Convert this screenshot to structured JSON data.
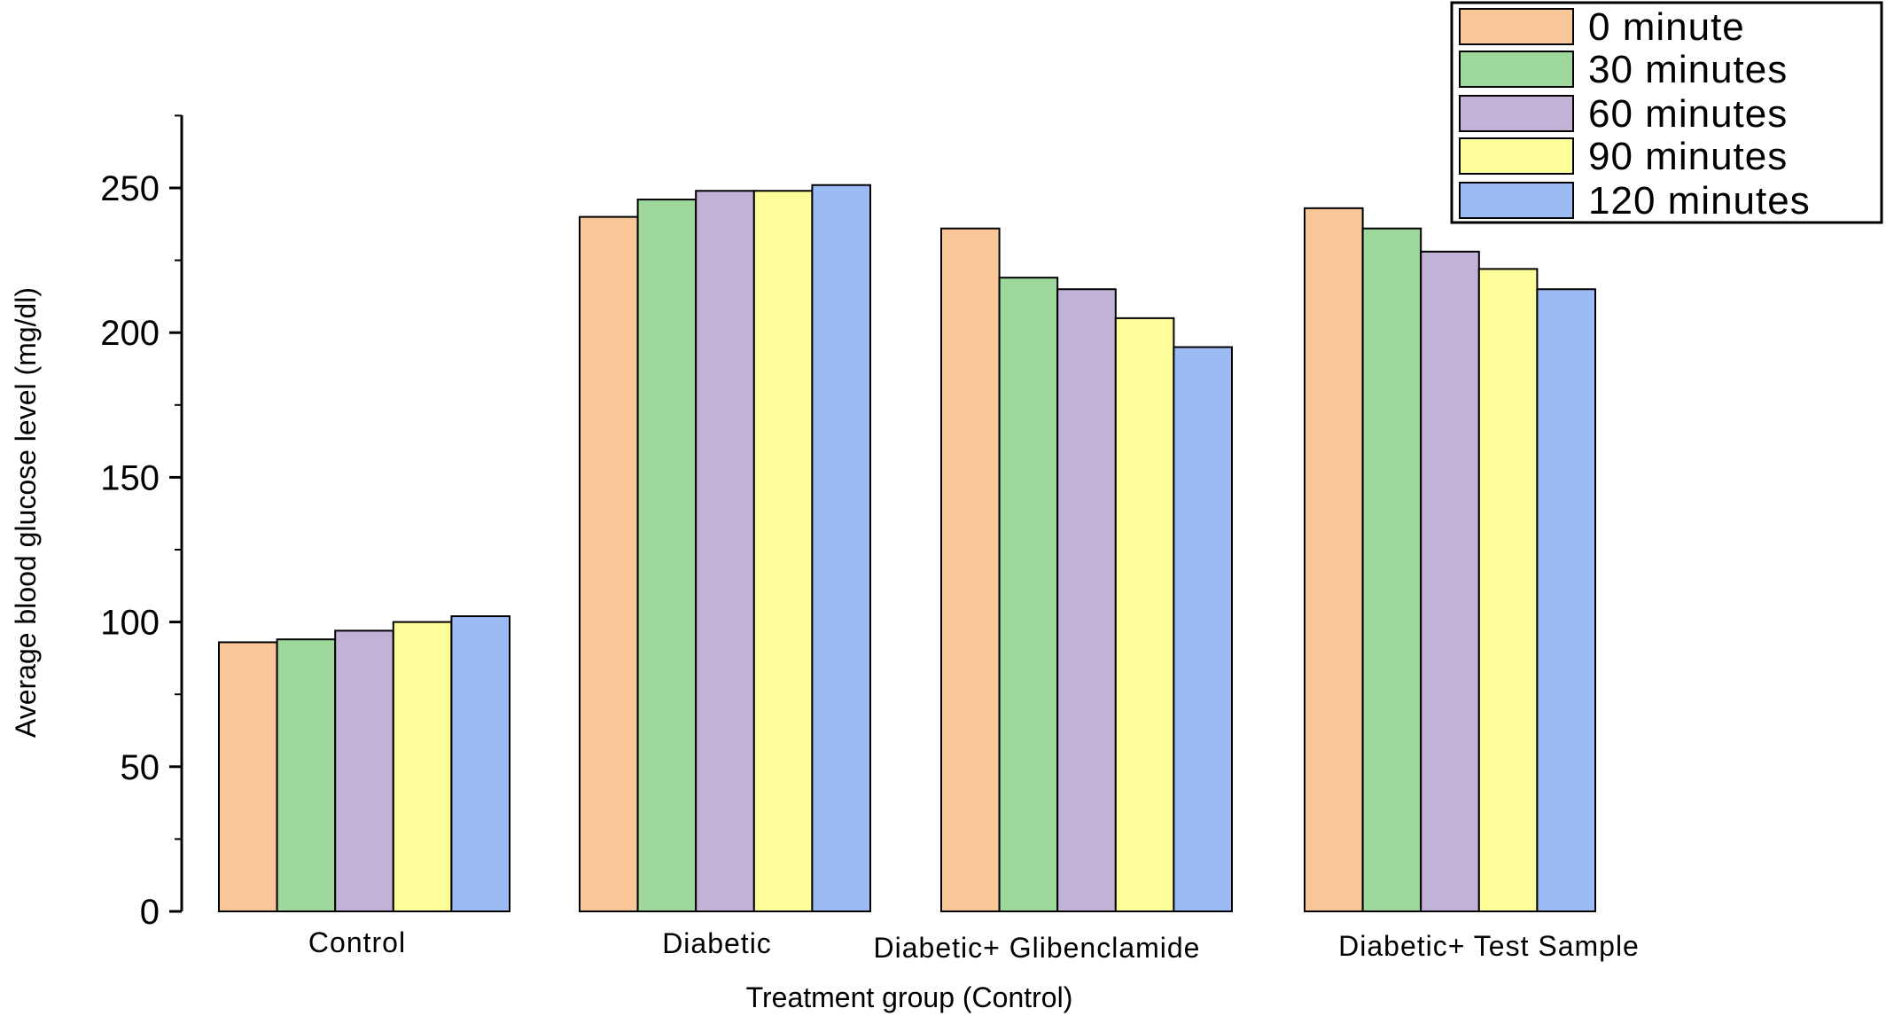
{
  "chart_data": {
    "type": "bar",
    "title": "",
    "xlabel": "Treatment group (Control)",
    "ylabel": "Average blood glucose level (mg/dl)",
    "ylim": [
      0,
      275
    ],
    "yticks": [
      0,
      50,
      100,
      150,
      200,
      250
    ],
    "categories": [
      "Control",
      "Diabetic",
      "Diabetic+ Glibenclamide",
      "Diabetic+ Test Sample"
    ],
    "series": [
      {
        "name": "0 minute",
        "color": "#f9c797",
        "values": [
          93,
          240,
          236,
          243
        ]
      },
      {
        "name": "30 minutes",
        "color": "#9dd79b",
        "values": [
          94,
          246,
          219,
          236
        ]
      },
      {
        "name": "60 minutes",
        "color": "#c3b2d7",
        "values": [
          97,
          249,
          215,
          228
        ]
      },
      {
        "name": "90 minutes",
        "color": "#fdfd9a",
        "values": [
          100,
          249,
          205,
          222
        ]
      },
      {
        "name": "120 minutes",
        "color": "#9cbaf3",
        "values": [
          102,
          251,
          195,
          215
        ]
      }
    ],
    "legend_position": "top-right",
    "grid": false
  }
}
